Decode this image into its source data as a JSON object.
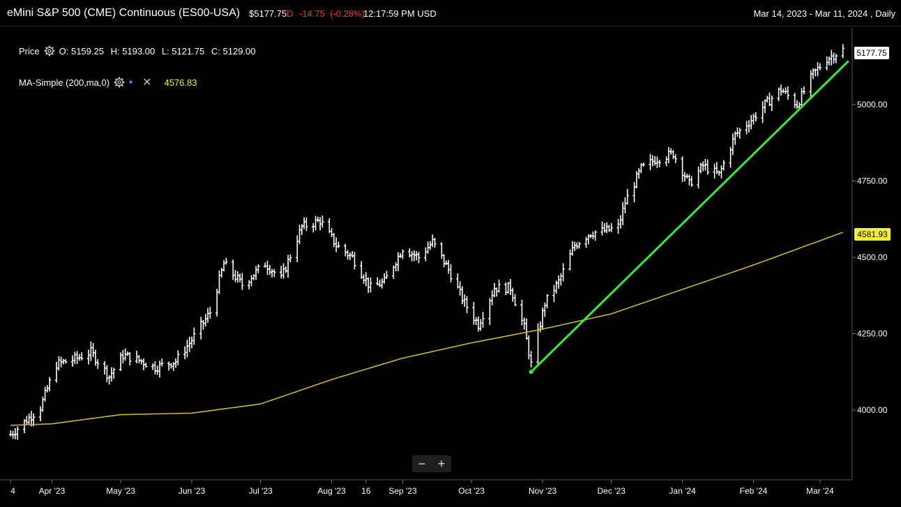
{
  "header": {
    "title": "eMini S&P 500 (CME) Continuous (ES00-USA)",
    "last_price": "$5177.75",
    "flag": "D",
    "change": "-14.75",
    "change_pct": "(-0.28%)",
    "time": "12:17:59 PM USD",
    "date_range": "Mar 14, 2023 - Mar 11, 2024 , Daily"
  },
  "legend": {
    "price_label": "Price",
    "ohlc": [
      "O: 5159.25",
      "H: 5193.00",
      "L: 5121.75",
      "C: 5129.00"
    ],
    "ma_label": "MA-Simple (200,ma,0)",
    "ma_value": "4576.83",
    "icons": [
      "gear-icon",
      "chevron-down-icon",
      "close-icon"
    ]
  },
  "price_tag": "5177.75",
  "ma_tag": "4581.93",
  "zoom": {
    "minus": "−",
    "plus": "+"
  },
  "colors": {
    "bars": "#ffffff",
    "ma": "#c8b92a",
    "trend": "#33ee33",
    "ma_tag_bg": "#f2ef3a",
    "down": "#ff2a2a"
  },
  "chart_data": {
    "type": "ohlc",
    "y_ticks": [
      "4000.00",
      "4250.00",
      "4500.00",
      "4750.00",
      "5000.00"
    ],
    "y_tick_values": [
      4000,
      4250,
      4500,
      4750,
      5000
    ],
    "ylim": [
      3820,
      5300
    ],
    "x_ticks": [
      "4",
      "Apr '23",
      "May '23",
      "Jun '23",
      "Jul '23",
      "Aug '23",
      "16",
      "Sep '23",
      "Oct '23",
      "Nov '23",
      "Dec '23",
      "Jan '24",
      "Feb '24",
      "Mar '24"
    ],
    "x_tick_dates": [
      "2023-03-14",
      "2023-04-01",
      "2023-05-01",
      "2023-06-01",
      "2023-07-01",
      "2023-08-01",
      "2023-08-16",
      "2023-09-01",
      "2023-10-01",
      "2023-11-01",
      "2023-12-01",
      "2024-01-01",
      "2024-02-01",
      "2024-03-01"
    ],
    "xlim": [
      "2023-03-13",
      "2024-03-12"
    ],
    "anchors": [
      [
        "2023-03-14",
        3920
      ],
      [
        "2023-03-20",
        3960
      ],
      [
        "2023-03-27",
        4010
      ],
      [
        "2023-04-03",
        4150
      ],
      [
        "2023-04-12",
        4170
      ],
      [
        "2023-04-18",
        4190
      ],
      [
        "2023-04-26",
        4110
      ],
      [
        "2023-05-02",
        4180
      ],
      [
        "2023-05-10",
        4160
      ],
      [
        "2023-05-16",
        4140
      ],
      [
        "2023-05-25",
        4160
      ],
      [
        "2023-06-01",
        4230
      ],
      [
        "2023-06-09",
        4320
      ],
      [
        "2023-06-15",
        4480
      ],
      [
        "2023-06-23",
        4410
      ],
      [
        "2023-07-03",
        4480
      ],
      [
        "2023-07-10",
        4430
      ],
      [
        "2023-07-19",
        4600
      ],
      [
        "2023-07-27",
        4620
      ],
      [
        "2023-08-03",
        4540
      ],
      [
        "2023-08-10",
        4500
      ],
      [
        "2023-08-18",
        4400
      ],
      [
        "2023-08-24",
        4420
      ],
      [
        "2023-09-01",
        4530
      ],
      [
        "2023-09-08",
        4500
      ],
      [
        "2023-09-14",
        4550
      ],
      [
        "2023-09-21",
        4460
      ],
      [
        "2023-09-28",
        4350
      ],
      [
        "2023-10-04",
        4280
      ],
      [
        "2023-10-11",
        4400
      ],
      [
        "2023-10-18",
        4400
      ],
      [
        "2023-10-24",
        4270
      ],
      [
        "2023-10-27",
        4150
      ],
      [
        "2023-11-02",
        4350
      ],
      [
        "2023-11-08",
        4420
      ],
      [
        "2023-11-15",
        4540
      ],
      [
        "2023-11-22",
        4580
      ],
      [
        "2023-11-30",
        4590
      ],
      [
        "2023-12-04",
        4600
      ],
      [
        "2023-12-07",
        4680
      ],
      [
        "2023-12-14",
        4790
      ],
      [
        "2023-12-20",
        4820
      ],
      [
        "2023-12-28",
        4840
      ],
      [
        "2024-01-04",
        4740
      ],
      [
        "2024-01-10",
        4800
      ],
      [
        "2024-01-17",
        4770
      ],
      [
        "2024-01-24",
        4900
      ],
      [
        "2024-01-31",
        4950
      ],
      [
        "2024-02-06",
        5000
      ],
      [
        "2024-02-13",
        5050
      ],
      [
        "2024-02-20",
        5000
      ],
      [
        "2024-02-27",
        5100
      ],
      [
        "2024-03-04",
        5150
      ],
      [
        "2024-03-11",
        5180
      ]
    ],
    "ma_series": [
      [
        "2023-03-14",
        3950
      ],
      [
        "2023-04-01",
        3955
      ],
      [
        "2023-05-01",
        3985
      ],
      [
        "2023-06-01",
        3990
      ],
      [
        "2023-07-01",
        4020
      ],
      [
        "2023-08-01",
        4100
      ],
      [
        "2023-09-01",
        4170
      ],
      [
        "2023-10-01",
        4220
      ],
      [
        "2023-11-01",
        4265
      ],
      [
        "2023-12-01",
        4315
      ],
      [
        "2024-01-01",
        4395
      ],
      [
        "2024-02-01",
        4475
      ],
      [
        "2024-03-11",
        4581.93
      ]
    ],
    "trendline": [
      [
        "2023-10-27",
        4125
      ],
      [
        "2024-03-11",
        5120
      ]
    ]
  }
}
